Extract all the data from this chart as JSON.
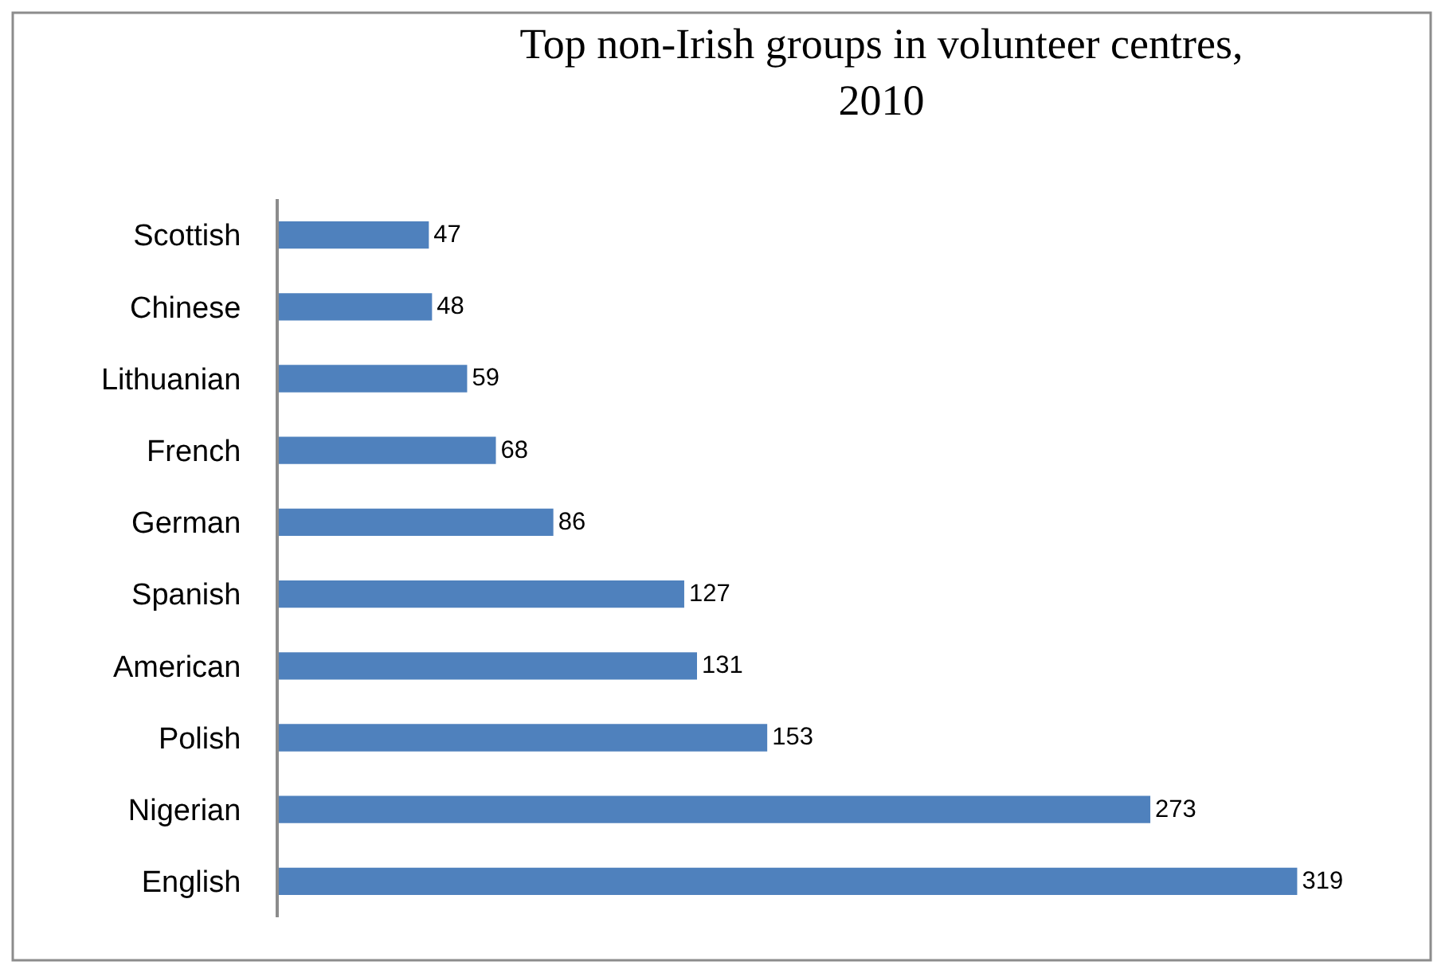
{
  "chart_data": {
    "type": "bar",
    "orientation": "horizontal",
    "title": "Top non-Irish groups in volunteer centres, 2010",
    "categories": [
      "Scottish",
      "Chinese",
      "Lithuanian",
      "French",
      "German",
      "Spanish",
      "American",
      "Polish",
      "Nigerian",
      "English"
    ],
    "values": [
      47,
      48,
      59,
      68,
      86,
      127,
      131,
      153,
      273,
      319
    ],
    "color": "#4f81bd",
    "data_labels": true
  }
}
